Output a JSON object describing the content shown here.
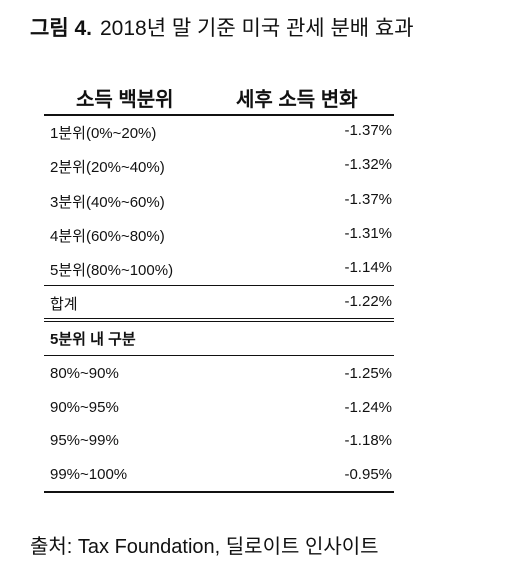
{
  "figure": {
    "label": "그림 4.",
    "title": "2018년 말 기준 미국 관세 분배 효과"
  },
  "table": {
    "headers": [
      "소득 백분위",
      "세후 소득 변화"
    ],
    "rows": [
      [
        "1분위(0%~20%)",
        "-1.37%"
      ],
      [
        "2분위(20%~40%)",
        "-1.32%"
      ],
      [
        "3분위(40%~60%)",
        "-1.37%"
      ],
      [
        "4분위(60%~80%)",
        "-1.31%"
      ],
      [
        "5분위(80%~100%)",
        "-1.14%"
      ]
    ],
    "total": [
      "합계",
      "-1.22%"
    ],
    "section": "5분위 내 구분",
    "section_rows": [
      [
        "80%~90%",
        "-1.25%"
      ],
      [
        "90%~95%",
        "-1.24%"
      ],
      [
        "95%~99%",
        "-1.18%"
      ],
      [
        "99%~100%",
        "-0.95%"
      ]
    ]
  },
  "source": "출처: Tax Foundation,  딜로이트 인사이트"
}
